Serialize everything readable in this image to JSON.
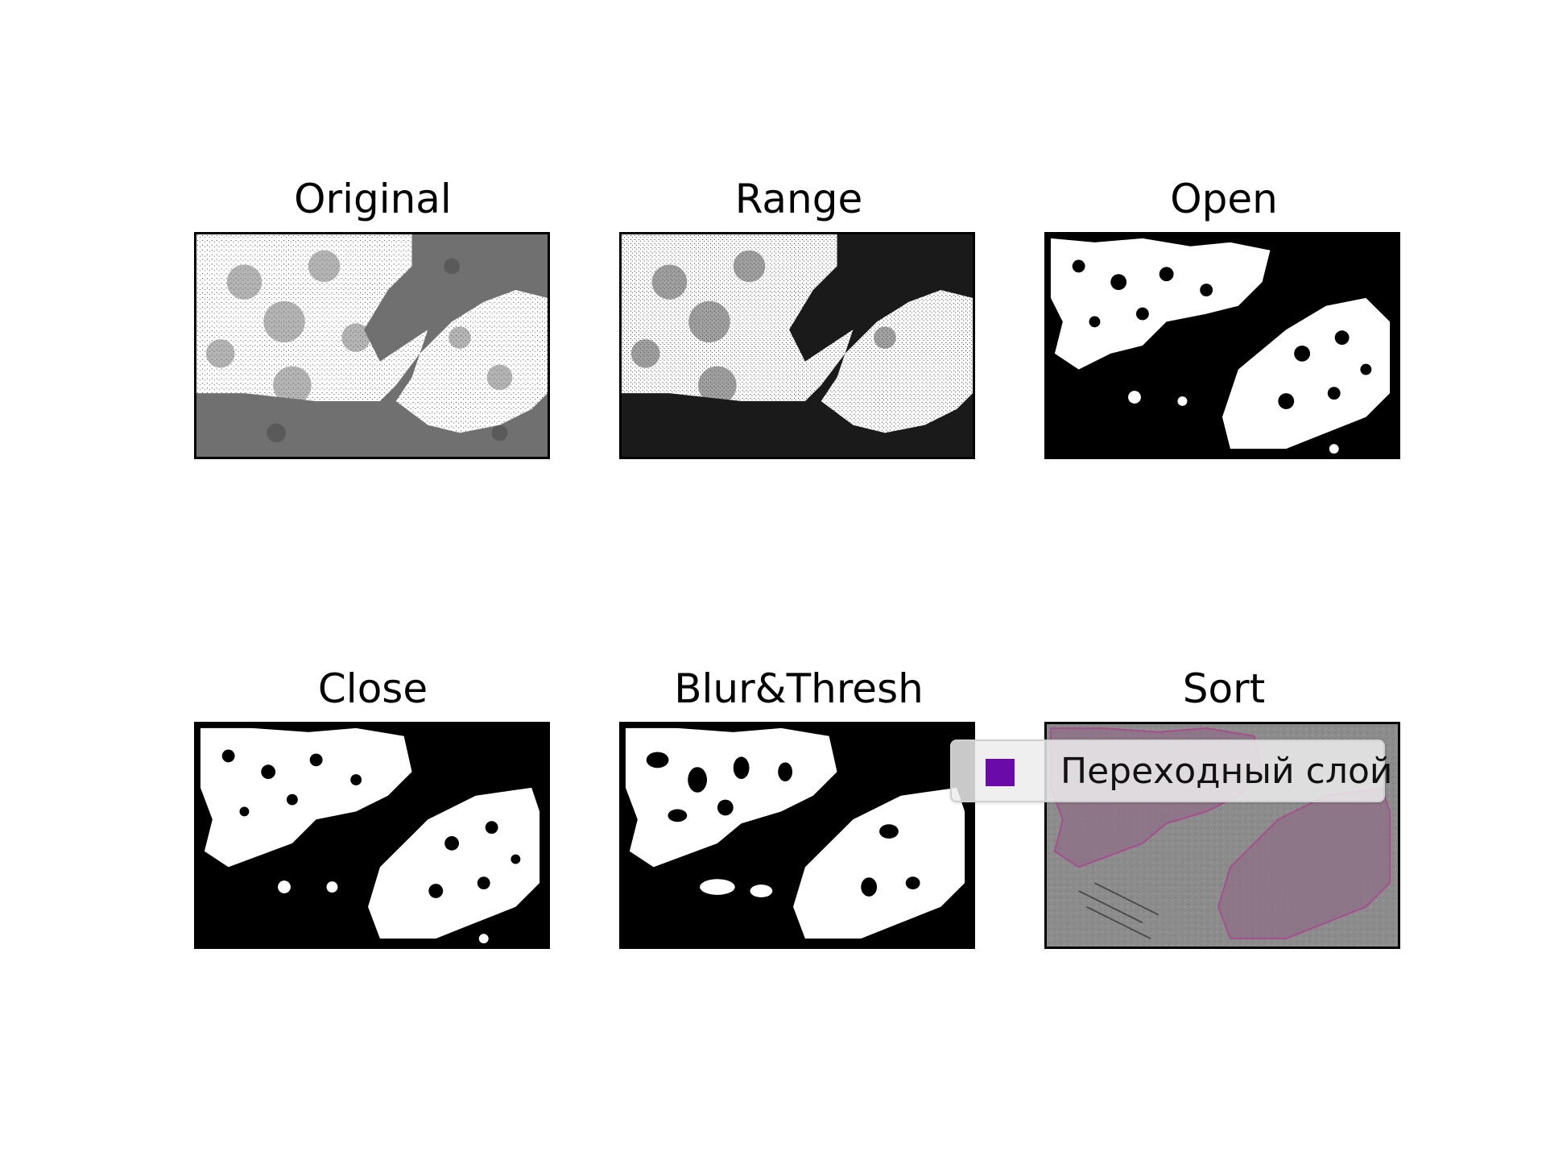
{
  "figure": {
    "panels": [
      {
        "id": "original",
        "title": "Original"
      },
      {
        "id": "range",
        "title": "Range"
      },
      {
        "id": "open",
        "title": "Open"
      },
      {
        "id": "close",
        "title": "Close"
      },
      {
        "id": "blur",
        "title": "Blur&Thresh"
      },
      {
        "id": "sort",
        "title": "Sort"
      }
    ],
    "legend": {
      "label": "Переходный слой",
      "swatch_color": "#6a0aa8"
    }
  }
}
